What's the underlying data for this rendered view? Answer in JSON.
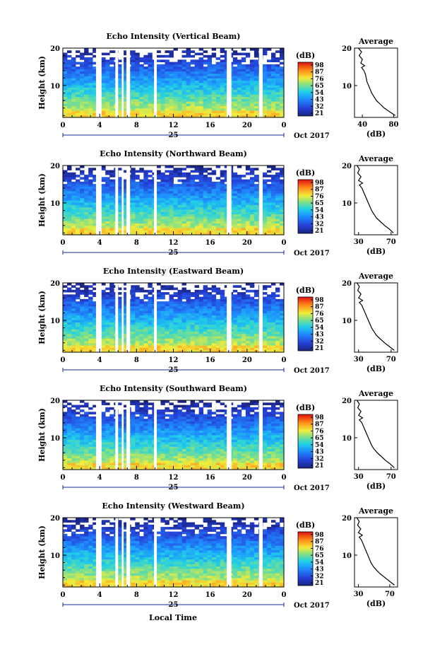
{
  "chart_data": [
    {
      "type": "heatmap",
      "title": "Echo Intensity (Vertical Beam)",
      "ylabel": "Height (km)",
      "xticks": [
        "0",
        "4",
        "8",
        "12",
        "16",
        "20",
        "0"
      ],
      "yticks": [
        "10",
        "20"
      ],
      "xlim": [
        0,
        24
      ],
      "ylim": [
        1.5,
        20
      ],
      "date_day": "25",
      "date_suffix": "Oct 2017",
      "colorbar": {
        "unit": "(dB)",
        "ticks": [
          "98",
          "87",
          "76",
          "65",
          "54",
          "43",
          "32",
          "21"
        ],
        "range": [
          21,
          98
        ]
      },
      "gaps": [
        [
          3.6,
          4.2
        ],
        [
          5.7,
          6.0
        ],
        [
          6.4,
          6.6
        ],
        [
          6.9,
          7.3
        ],
        [
          9.9,
          10.2
        ],
        [
          17.8,
          18.3
        ],
        [
          21.3,
          21.7
        ]
      ],
      "profile": {
        "title": "Average",
        "xlabel": "(dB)",
        "xticks": [
          "40",
          "80"
        ],
        "xlim": [
          30,
          85
        ],
        "height": [
          2.0,
          3.0,
          4.0,
          5.0,
          6.0,
          7.0,
          8.0,
          9.0,
          10.0,
          11.0,
          12.0,
          13.0,
          14.0,
          14.8,
          15.3,
          16.0,
          17.0,
          18.0,
          19.0,
          20.0
        ],
        "values": [
          82,
          75,
          68,
          63,
          58,
          55,
          52,
          50,
          48,
          46,
          45,
          44,
          42,
          39,
          43,
          38,
          40,
          36,
          39,
          35
        ]
      }
    },
    {
      "type": "heatmap",
      "title": "Echo Intensity (Northward Beam)",
      "ylabel": "Height (km)",
      "xticks": [
        "0",
        "4",
        "8",
        "12",
        "16",
        "20",
        "0"
      ],
      "yticks": [
        "10",
        "20"
      ],
      "xlim": [
        0,
        24
      ],
      "ylim": [
        1.5,
        20
      ],
      "date_day": "25",
      "date_suffix": "Oct 2017",
      "colorbar": {
        "unit": "(dB)",
        "ticks": [
          "98",
          "87",
          "76",
          "65",
          "54",
          "43",
          "32",
          "21"
        ],
        "range": [
          21,
          98
        ]
      },
      "gaps": [
        [
          3.6,
          4.2
        ],
        [
          5.7,
          6.0
        ],
        [
          6.4,
          6.6
        ],
        [
          6.9,
          7.3
        ],
        [
          9.9,
          10.2
        ],
        [
          17.8,
          18.3
        ],
        [
          21.3,
          21.7
        ]
      ],
      "profile": {
        "title": "Average",
        "xlabel": "(dB)",
        "xticks": [
          "30",
          "70"
        ],
        "xlim": [
          25,
          78
        ],
        "height": [
          2.0,
          3.0,
          4.0,
          5.0,
          6.0,
          7.0,
          8.0,
          9.0,
          10.0,
          11.0,
          12.0,
          13.0,
          14.0,
          14.8,
          15.3,
          16.0,
          17.0,
          18.0,
          19.0,
          20.0
        ],
        "values": [
          73,
          68,
          62,
          57,
          52,
          49,
          46,
          44,
          42,
          40,
          38,
          36,
          34,
          31,
          35,
          30,
          33,
          29,
          31,
          28
        ]
      }
    },
    {
      "type": "heatmap",
      "title": "Echo Intensity (Eastward Beam)",
      "ylabel": "Height (km)",
      "xticks": [
        "0",
        "4",
        "8",
        "12",
        "16",
        "20",
        "0"
      ],
      "yticks": [
        "10",
        "20"
      ],
      "xlim": [
        0,
        24
      ],
      "ylim": [
        1.5,
        20
      ],
      "date_day": "25",
      "date_suffix": "Oct 2017",
      "colorbar": {
        "unit": "(dB)",
        "ticks": [
          "98",
          "87",
          "76",
          "65",
          "54",
          "43",
          "32",
          "21"
        ],
        "range": [
          21,
          98
        ]
      },
      "gaps": [
        [
          3.6,
          4.2
        ],
        [
          5.7,
          6.0
        ],
        [
          6.4,
          6.6
        ],
        [
          6.9,
          7.3
        ],
        [
          9.9,
          10.2
        ],
        [
          17.8,
          18.3
        ],
        [
          21.3,
          21.7
        ]
      ],
      "profile": {
        "title": "Average",
        "xlabel": "(dB)",
        "xticks": [
          "30",
          "70"
        ],
        "xlim": [
          25,
          78
        ],
        "height": [
          2.0,
          3.0,
          4.0,
          5.0,
          6.0,
          7.0,
          8.0,
          9.0,
          10.0,
          11.0,
          12.0,
          13.0,
          14.0,
          14.8,
          15.3,
          16.0,
          17.0,
          18.0,
          19.0,
          20.0
        ],
        "values": [
          74,
          68,
          62,
          57,
          52,
          49,
          46,
          44,
          42,
          40,
          38,
          36,
          34,
          31,
          35,
          30,
          33,
          29,
          31,
          28
        ]
      }
    },
    {
      "type": "heatmap",
      "title": "Echo Intensity (Southward Beam)",
      "ylabel": "Height (km)",
      "xticks": [
        "0",
        "4",
        "8",
        "12",
        "16",
        "20",
        "0"
      ],
      "yticks": [
        "10",
        "20"
      ],
      "xlim": [
        0,
        24
      ],
      "ylim": [
        1.5,
        20
      ],
      "date_day": "25",
      "date_suffix": "Oct 2017",
      "colorbar": {
        "unit": "(dB)",
        "ticks": [
          "98",
          "87",
          "76",
          "65",
          "54",
          "43",
          "32",
          "21"
        ],
        "range": [
          21,
          98
        ]
      },
      "gaps": [
        [
          3.6,
          4.2
        ],
        [
          5.7,
          6.0
        ],
        [
          6.4,
          6.6
        ],
        [
          6.9,
          7.3
        ],
        [
          9.9,
          10.2
        ],
        [
          17.8,
          18.3
        ],
        [
          21.3,
          21.7
        ]
      ],
      "profile": {
        "title": "Average",
        "xlabel": "(dB)",
        "xticks": [
          "30",
          "70"
        ],
        "xlim": [
          25,
          78
        ],
        "height": [
          2.0,
          3.0,
          4.0,
          5.0,
          6.0,
          7.0,
          8.0,
          9.0,
          10.0,
          11.0,
          12.0,
          13.0,
          14.0,
          14.8,
          15.3,
          16.0,
          17.0,
          18.0,
          19.0,
          20.0
        ],
        "values": [
          74,
          69,
          63,
          58,
          53,
          49,
          46,
          44,
          42,
          40,
          38,
          36,
          34,
          31,
          35,
          30,
          33,
          29,
          31,
          28
        ]
      }
    },
    {
      "type": "heatmap",
      "title": "Echo Intensity (Westward Beam)",
      "ylabel": "Height (km)",
      "xticks": [
        "0",
        "4",
        "8",
        "12",
        "16",
        "20",
        "0"
      ],
      "yticks": [
        "10",
        "20"
      ],
      "xlim": [
        0,
        24
      ],
      "ylim": [
        1.5,
        20
      ],
      "date_day": "25",
      "date_suffix": "Oct 2017",
      "colorbar": {
        "unit": "(dB)",
        "ticks": [
          "98",
          "87",
          "76",
          "65",
          "54",
          "43",
          "32",
          "21"
        ],
        "range": [
          21,
          98
        ]
      },
      "gaps": [
        [
          3.6,
          4.2
        ],
        [
          5.7,
          6.0
        ],
        [
          6.4,
          6.6
        ],
        [
          6.9,
          7.3
        ],
        [
          9.9,
          10.2
        ],
        [
          17.8,
          18.3
        ],
        [
          21.3,
          21.7
        ]
      ],
      "profile": {
        "title": "Average",
        "xlabel": "(dB)",
        "xticks": [
          "30",
          "70"
        ],
        "xlim": [
          25,
          80
        ],
        "height": [
          2.0,
          3.0,
          4.0,
          5.0,
          6.0,
          7.0,
          8.0,
          9.0,
          10.0,
          11.0,
          12.0,
          13.0,
          14.0,
          14.8,
          15.3,
          16.0,
          17.0,
          18.0,
          19.0,
          20.0
        ],
        "values": [
          76,
          70,
          64,
          58,
          53,
          49,
          46,
          44,
          42,
          40,
          38,
          36,
          34,
          31,
          35,
          30,
          33,
          29,
          31,
          28
        ]
      }
    }
  ],
  "common_xlabel": "Local Time"
}
